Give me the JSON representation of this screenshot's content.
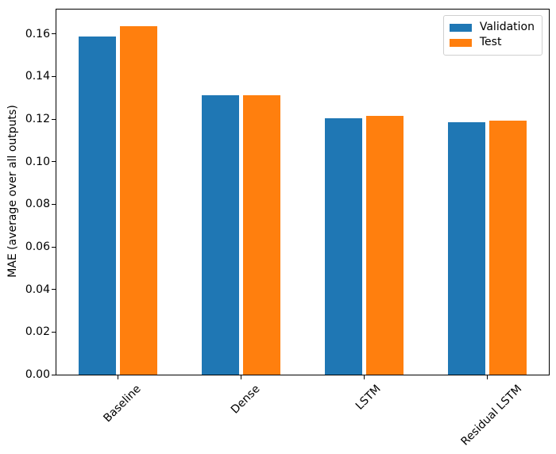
{
  "chart_data": {
    "type": "bar",
    "title": "",
    "xlabel": "",
    "ylabel": "MAE (average over all outputs)",
    "categories": [
      "Baseline",
      "Dense",
      "LSTM",
      "Residual LSTM"
    ],
    "series": [
      {
        "name": "Validation",
        "color": "#1f77b4",
        "values": [
          0.1589,
          0.1311,
          0.1204,
          0.1184
        ]
      },
      {
        "name": "Test",
        "color": "#ff7f0e",
        "values": [
          0.1638,
          0.1312,
          0.1217,
          0.1193
        ]
      }
    ],
    "ylim": [
      0,
      0.1715
    ],
    "ytick_values": [
      0.0,
      0.02,
      0.04,
      0.06,
      0.08,
      0.1,
      0.12,
      0.14,
      0.16
    ],
    "ytick_labels": [
      "0.00",
      "0.02",
      "0.04",
      "0.06",
      "0.08",
      "0.10",
      "0.12",
      "0.14",
      "0.16"
    ],
    "xtick_rotation_deg": 45,
    "grid": false,
    "legend": {
      "position": "upper right",
      "entries": [
        "Validation",
        "Test"
      ]
    }
  }
}
